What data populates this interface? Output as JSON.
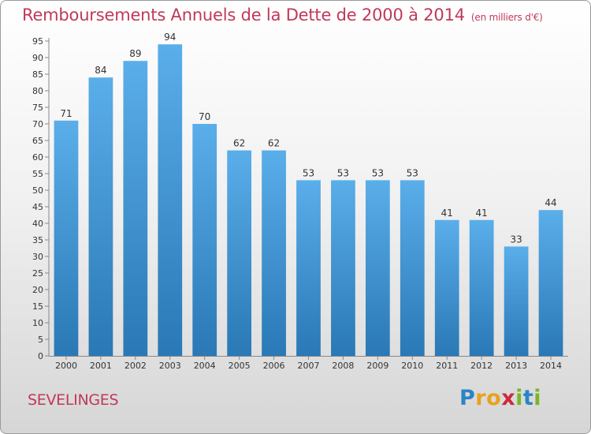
{
  "header": {
    "title": "Remboursements Annuels de la Dette de 2000 à 2014",
    "subtitle": "(en milliers d'€)"
  },
  "footer": {
    "place": "SEVELINGES",
    "logo_letters": [
      "P",
      "r",
      "o",
      "x",
      "i",
      "t",
      "i"
    ],
    "logo_colors": [
      "#2a84c6",
      "#e8a21c",
      "#e8a21c",
      "#cc2a3b",
      "#7ab42c",
      "#2a84c6",
      "#7ab42c"
    ]
  },
  "chart_data": {
    "type": "bar",
    "title": "Remboursements Annuels de la Dette de 2000 à 2014",
    "xlabel": "",
    "ylabel": "",
    "categories": [
      "2000",
      "2001",
      "2002",
      "2003",
      "2004",
      "2005",
      "2006",
      "2007",
      "2008",
      "2009",
      "2010",
      "2011",
      "2012",
      "2013",
      "2014"
    ],
    "values": [
      71,
      84,
      89,
      94,
      70,
      62,
      62,
      53,
      53,
      53,
      53,
      41,
      41,
      33,
      44
    ],
    "ylim": [
      0,
      95
    ],
    "yticks": [
      0,
      5,
      10,
      15,
      20,
      25,
      30,
      35,
      40,
      45,
      50,
      55,
      60,
      65,
      70,
      75,
      80,
      85,
      90,
      95
    ],
    "grid": false,
    "colors": {
      "bar_top": "#5aaeea",
      "bar_bottom": "#2a78b6",
      "axis": "#888888",
      "text": "#333333"
    }
  }
}
